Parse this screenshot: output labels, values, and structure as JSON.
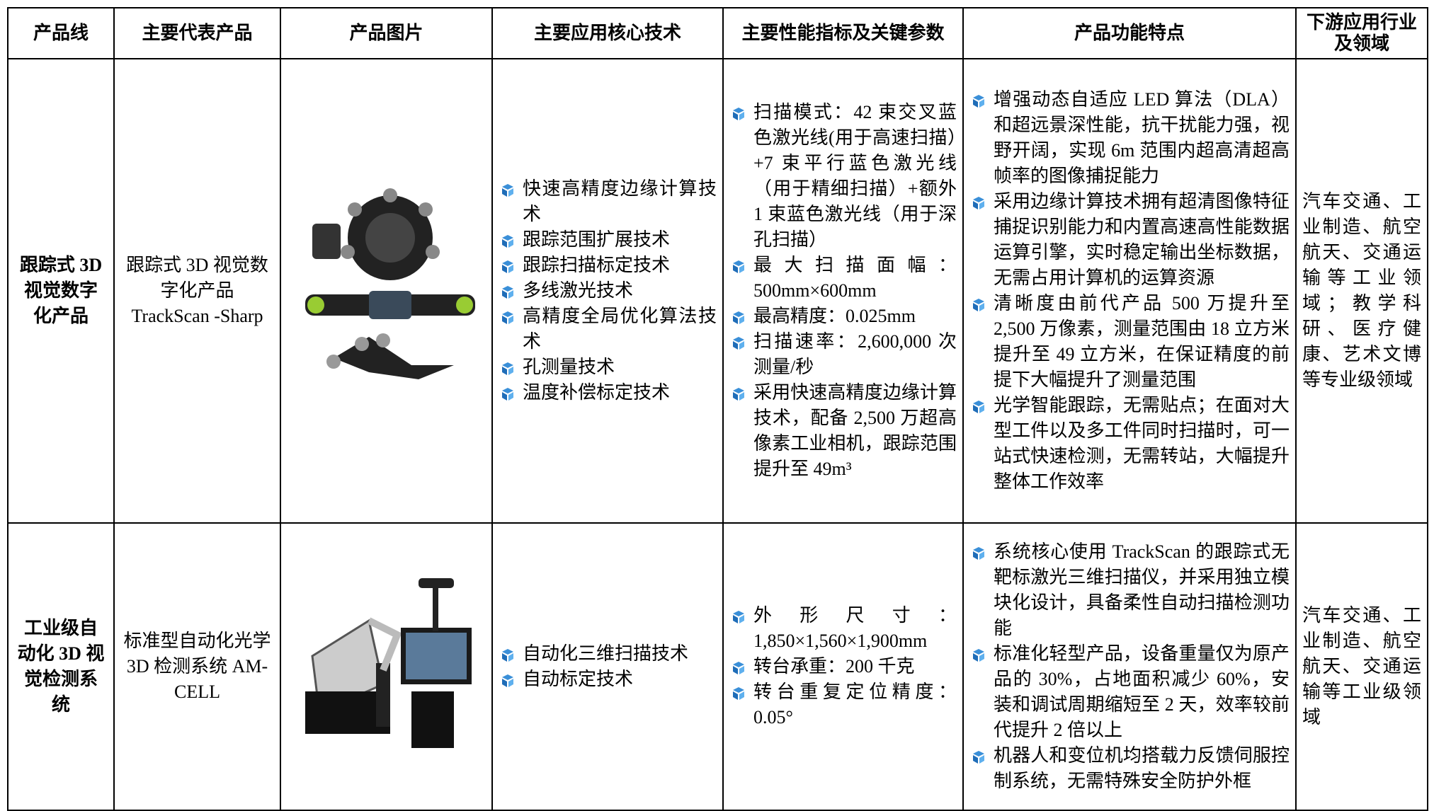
{
  "table": {
    "columns": [
      "产品线",
      "主要代表产品",
      "产品图片",
      "主要应用核心技术",
      "主要性能指标及关键参数",
      "产品功能特点",
      "下游应用行业及领域"
    ],
    "rows": [
      {
        "line": "跟踪式 3D 视觉数字化产品",
        "product": "跟踪式 3D 视觉数字化产品 TrackScan -Sharp",
        "techniques": [
          "快速高精度边缘计算技术",
          "跟踪范围扩展技术",
          "跟踪扫描标定技术",
          "多线激光技术",
          "高精度全局优化算法技术",
          "孔测量技术",
          "温度补偿标定技术"
        ],
        "parameters": [
          "扫描模式：42 束交叉蓝色激光线(用于高速扫描）+7 束平行蓝色激光线（用于精细扫描）+额外 1 束蓝色激光线（用于深孔扫描）",
          "最大扫描面幅：500mm×600mm",
          "最高精度：0.025mm",
          "扫描速率：2,600,000 次测量/秒",
          "采用快速高精度边缘计算技术，配备 2,500 万超高像素工业相机，跟踪范围提升至 49m³"
        ],
        "features": [
          "增强动态自适应 LED 算法（DLA）和超远景深性能，抗干扰能力强，视野开阔，实现 6m 范围内超高清超高帧率的图像捕捉能力",
          "采用边缘计算技术拥有超清图像特征捕捉识别能力和内置高速高性能数据运算引擎，实时稳定输出坐标数据，无需占用计算机的运算资源",
          "清晰度由前代产品 500 万提升至 2,500 万像素，测量范围由 18 立方米提升至 49 立方米，在保证精度的前提下大幅提升了测量范围",
          "光学智能跟踪，无需贴点；在面对大型工件以及多工件同时扫描时，可一站式快速检测，无需转站，大幅提升整体工作效率"
        ],
        "industries": "汽车交通、工业制造、航空航天、交通运输等工业领域；教学科研、医疗健康、艺术文博等专业级领域"
      },
      {
        "line": "工业级自动化 3D 视觉检测系统",
        "product": "标准型自动化光学 3D 检测系统 AM-CELL",
        "techniques": [
          "自动化三维扫描技术",
          "自动标定技术"
        ],
        "parameters": [
          "外形尺寸：1,850×1,560×1,900mm",
          "转台承重：200 千克",
          "转台重复定位精度：0.05°"
        ],
        "features": [
          "系统核心使用 TrackScan 的跟踪式无靶标激光三维扫描仪，并采用独立模块化设计，具备柔性自动扫描检测功能",
          "标准化轻型产品，设备重量仅为原产品的 30%，占地面积减少 60%，安装和调试周期缩短至 2 天，效率较前代提升 2 倍以上",
          "机器人和变位机均搭载力反馈伺服控制系统，无需特殊安全防护外框"
        ],
        "industries": "汽车交通、工业制造、航空航天、交通运输等工业级领域"
      }
    ]
  }
}
